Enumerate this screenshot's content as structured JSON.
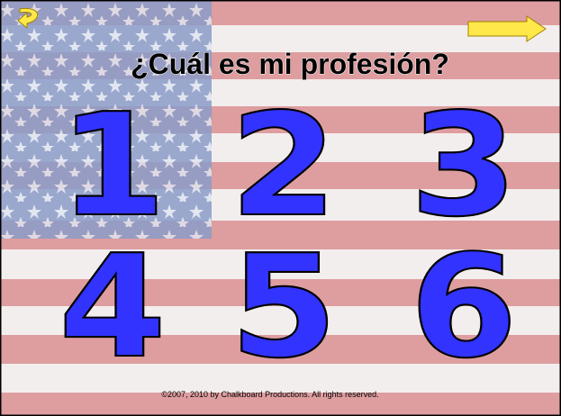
{
  "title": "¿Cuál es mi profesión?",
  "choices": [
    "1",
    "2",
    "3",
    "4",
    "5",
    "6"
  ],
  "footer": "©2007, 2010 by Chalkboard Productions.  All rights reserved."
}
